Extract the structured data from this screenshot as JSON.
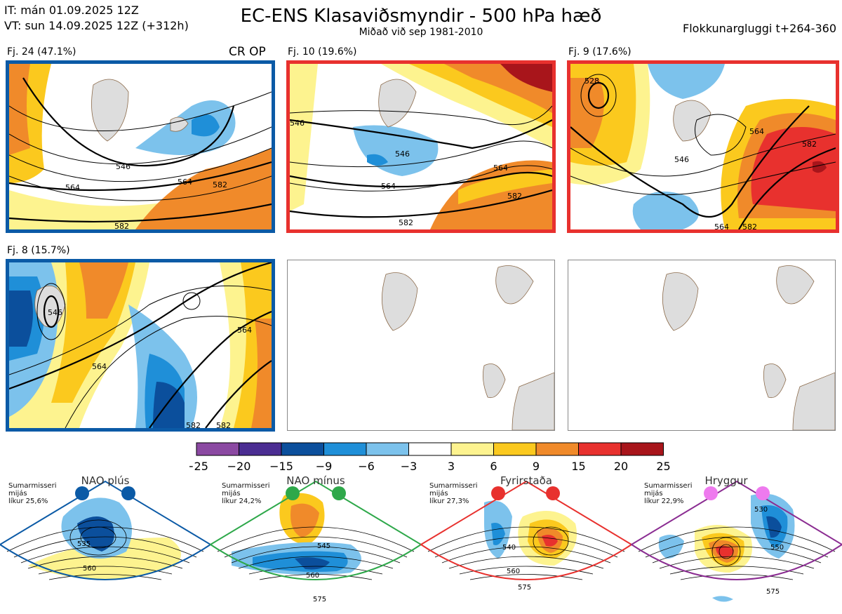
{
  "header": {
    "it_line": "IT: mán 01.09.2025 12Z",
    "vt_line": "VT: sun 14.09.2025 12Z  (+312h)",
    "title": "EC-ENS Klasaviðsmyndir - 500 hPa hæð",
    "subtitle": "Miðað við sep 1981-2010",
    "window": "Flokkunargluggi t+264-360"
  },
  "panels": [
    {
      "label": "Fj. 24 (47.1%)",
      "tag": "CR OP",
      "border": "#0b5aa6",
      "contours": [
        "546",
        "564",
        "564",
        "582",
        "582"
      ]
    },
    {
      "label": "Fj. 10 (19.6%)",
      "tag": "",
      "border": "#e8312e",
      "contours": [
        "546",
        "546",
        "564",
        "564",
        "582",
        "582"
      ]
    },
    {
      "label": "Fj. 9 (17.6%)",
      "tag": "",
      "border": "#e8312e",
      "contours": [
        "528",
        "546",
        "564",
        "582",
        "564",
        "582"
      ]
    },
    {
      "label": "Fj. 8 (15.7%)",
      "tag": "",
      "border": "#0b5aa6",
      "contours": [
        "546",
        "564",
        "564",
        "582",
        "582"
      ]
    }
  ],
  "colorbar": {
    "ticks": [
      "−25",
      "−20",
      "−15",
      "−9",
      "−6",
      "−3",
      "3",
      "6",
      "9",
      "15",
      "20",
      "25"
    ],
    "colors": [
      "#8b49a2",
      "#4b2d92",
      "#0b4f9c",
      "#1f8fd8",
      "#7cc2ec",
      "#ffffff",
      "#fdf38f",
      "#fbc91e",
      "#f08a2a",
      "#e8312e",
      "#a8151b"
    ]
  },
  "regimes": [
    {
      "name": "NAO plús",
      "info1": "Sumarmisseri",
      "info2": "mijás",
      "info3": "líkur 25,6%",
      "color": "#0b5aa6",
      "contours": [
        "535",
        "560"
      ]
    },
    {
      "name": "NAO mínus",
      "info1": "Sumarmisseri",
      "info2": "mijás",
      "info3": "líkur 24,2%",
      "color": "#2ea84a",
      "contours": [
        "545",
        "560",
        "575"
      ]
    },
    {
      "name": "Fyrirstaða",
      "info1": "Sumarmisseri",
      "info2": "mijás",
      "info3": "líkur 27,3%",
      "color": "#e8312e",
      "contours": [
        "540",
        "560",
        "575"
      ]
    },
    {
      "name": "Hryggur",
      "info1": "Sumarmisseri",
      "info2": "mijás",
      "info3": "líkur 22,9%",
      "color": "#8b2d92",
      "contours": [
        "530",
        "550",
        "575"
      ]
    }
  ]
}
